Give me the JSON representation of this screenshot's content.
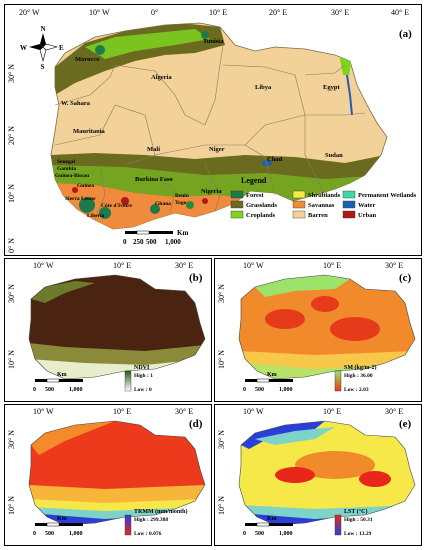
{
  "panel_a": {
    "label": "(a)",
    "top_ticks": [
      "20° W",
      "10° W",
      "0°",
      "10° E",
      "20° E",
      "30° E",
      "40° E"
    ],
    "left_ticks": [
      "30° N",
      "20° N",
      "10° N",
      "0° N"
    ],
    "compass": {
      "n": "N",
      "s": "S",
      "e": "E",
      "w": "W"
    },
    "countries": [
      "Tunisia",
      "Morocco",
      "Algeria",
      "Libya",
      "Egypt",
      "W. Sahara",
      "Mauritania",
      "Mali",
      "Niger",
      "Chad",
      "Sudan",
      "Senegal",
      "Gambia",
      "Guinea-Bissau",
      "Guinea",
      "Burkina Faso",
      "Sierra Leone",
      "Liberia",
      "Côte d'Ivoire",
      "Ghana",
      "Benin",
      "Togo",
      "Nigeria"
    ],
    "legend_title": "Legend",
    "legend": [
      {
        "label": "Forest",
        "color": "#1f7a4a"
      },
      {
        "label": "Grasslands",
        "color": "#6b6b1f"
      },
      {
        "label": "Croplands",
        "color": "#7ed321"
      },
      {
        "label": "Shrublands",
        "color": "#f7e84a"
      },
      {
        "label": "Savannas",
        "color": "#f08a3c"
      },
      {
        "label": "Barren",
        "color": "#f3d29a"
      },
      {
        "label": "Permanent Wetlands",
        "color": "#3fd6a8"
      },
      {
        "label": "Water",
        "color": "#1f5fb0"
      },
      {
        "label": "Urban",
        "color": "#b01818"
      }
    ],
    "scale": [
      "0",
      "250",
      "500",
      "1,000"
    ],
    "scale_unit": "Km"
  },
  "panels_small": [
    {
      "id": "b",
      "label": "(b)",
      "top_ticks": [
        "10° W",
        "10° E",
        "30° E"
      ],
      "left_ticks": [
        "30° N",
        "10° N"
      ],
      "legend_title": "NDVI",
      "high": "High : 1",
      "low": "Low : 0",
      "colors": {
        "high": "#2f5a12",
        "low": "#ffffff"
      }
    },
    {
      "id": "c",
      "label": "(c)",
      "top_ticks": [
        "10° W",
        "10° E",
        "30° E"
      ],
      "left_ticks": [
        "30° N",
        "10° N"
      ],
      "legend_title": "SM (kg/m-2)",
      "high": "High : 36.00",
      "low": "Low : 2.03",
      "colors": {
        "high": "#9be36b",
        "low": "#e63b1a"
      }
    },
    {
      "id": "d",
      "label": "(d)",
      "top_ticks": [
        "10° W",
        "10° E",
        "30° E"
      ],
      "left_ticks": [
        "30° N",
        "10° N"
      ],
      "legend_title": "TRMM (mm/month)",
      "high": "High : 299.388",
      "low": "Low : 0.076",
      "colors": {
        "high": "#2a3fd9",
        "low": "#e8261a"
      }
    },
    {
      "id": "e",
      "label": "(e)",
      "top_ticks": [
        "10° W",
        "10° E",
        "30° E"
      ],
      "left_ticks": [
        "30° N",
        "10° N"
      ],
      "legend_title": "LST (°C)",
      "high": "High : 50.31",
      "low": "Low : 13.29",
      "colors": {
        "high": "#e8261a",
        "low": "#2a3fd9"
      }
    }
  ],
  "small_scale": [
    "0",
    "500",
    "1,000"
  ],
  "small_scale_unit": "Km"
}
